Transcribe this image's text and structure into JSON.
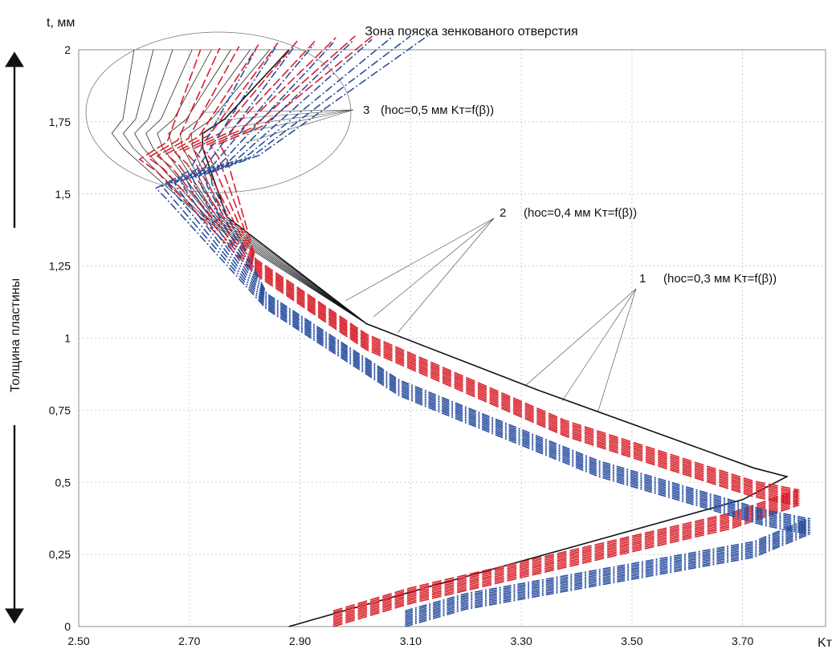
{
  "chart_data": {
    "type": "line",
    "title": "Зона пояска зенкованого отверстия",
    "ylabel_top": "t, мм",
    "ylabel_side": "Толщина пластины",
    "xlabel": "Kт",
    "xlim": [
      2.5,
      3.85
    ],
    "ylim": [
      0,
      2
    ],
    "x_ticks": [
      "2.50",
      "2.70",
      "2.90",
      "3.10",
      "3.30",
      "3.50",
      "3.70"
    ],
    "y_ticks": [
      "0",
      "0,25",
      "0,5",
      "0,75",
      "1",
      "1,25",
      "1,5",
      "1,75",
      "2"
    ],
    "grid": true,
    "annotations": [
      {
        "id": "1",
        "number": "1",
        "text": "(hос=0,3 мм  Kт=f(β))"
      },
      {
        "id": "2",
        "number": "2",
        "text": "(hос=0,4 мм  Kт=f(β))"
      },
      {
        "id": "3",
        "number": "3",
        "text": "(hос=0,5 мм  Kт=f(β))"
      }
    ],
    "colors": {
      "group1": "#111111",
      "group2": "#d8202a",
      "group3": "#2a4fa0",
      "grid": "#bdbdbd"
    },
    "series": [
      {
        "group": "1",
        "style": "solid",
        "points": [
          [
            2.88,
            0
          ],
          [
            3.1,
            0.12
          ],
          [
            3.7,
            0.44
          ],
          [
            3.78,
            0.52
          ],
          [
            3.72,
            0.55
          ],
          [
            3.33,
            0.82
          ],
          [
            3.02,
            1.05
          ],
          [
            2.72,
            1.42
          ],
          [
            2.58,
            1.66
          ],
          [
            2.56,
            1.71
          ],
          [
            2.58,
            1.76
          ],
          [
            2.6,
            2.0
          ]
        ]
      },
      {
        "group": "2",
        "style": "dashed",
        "points": [
          [
            2.96,
            0
          ],
          [
            3.1,
            0.08
          ],
          [
            3.68,
            0.34
          ],
          [
            3.8,
            0.42
          ],
          [
            3.72,
            0.45
          ],
          [
            3.38,
            0.66
          ],
          [
            3.02,
            0.96
          ],
          [
            2.82,
            1.22
          ],
          [
            2.64,
            1.58
          ],
          [
            2.61,
            1.62
          ],
          [
            2.66,
            1.68
          ],
          [
            2.72,
            2.0
          ]
        ]
      },
      {
        "group": "3",
        "style": "dash-dot",
        "points": [
          [
            3.09,
            0
          ],
          [
            3.2,
            0.06
          ],
          [
            3.72,
            0.24
          ],
          [
            3.82,
            0.32
          ],
          [
            3.74,
            0.35
          ],
          [
            3.44,
            0.52
          ],
          [
            3.08,
            0.8
          ],
          [
            2.84,
            1.1
          ],
          [
            2.66,
            1.48
          ],
          [
            2.64,
            1.52
          ],
          [
            2.7,
            1.58
          ],
          [
            2.82,
            2.0
          ]
        ]
      }
    ]
  }
}
